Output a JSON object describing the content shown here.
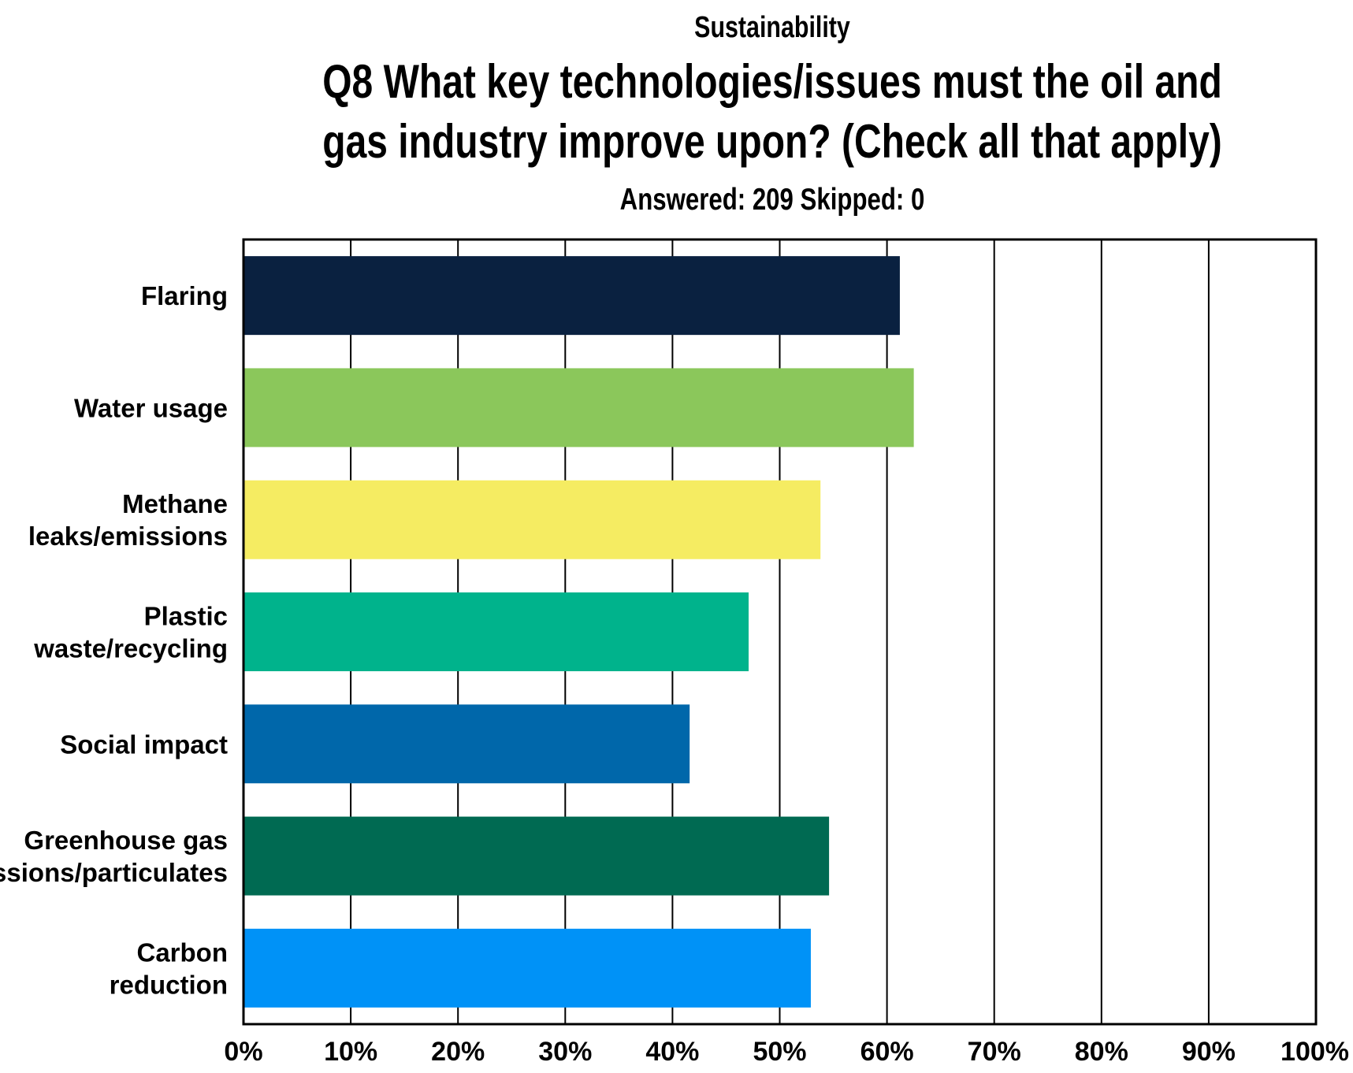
{
  "header": {
    "kicker": "Sustainability",
    "title": "Q8 What key technologies/issues must the oil and gas industry improve upon? (Check all that apply)",
    "subtitle": "Answered: 209 Skipped: 0"
  },
  "chart_data": {
    "type": "bar",
    "orientation": "horizontal",
    "categories": [
      [
        "Flaring"
      ],
      [
        "Water usage"
      ],
      [
        "Methane",
        "leaks/emissions"
      ],
      [
        "Plastic",
        "waste/recycling"
      ],
      [
        "Social impact"
      ],
      [
        "Greenhouse gas",
        "emissions/particulates"
      ],
      [
        "Carbon",
        "reduction"
      ]
    ],
    "values": [
      61.2,
      62.5,
      53.8,
      47.1,
      41.6,
      54.6,
      52.9
    ],
    "colors": [
      "#0a2140",
      "#8bc75b",
      "#f5ec62",
      "#00b38c",
      "#0067aa",
      "#006a52",
      "#0092f7"
    ],
    "xlim": [
      0,
      100
    ],
    "xticks": [
      "0%",
      "10%",
      "20%",
      "30%",
      "40%",
      "50%",
      "60%",
      "70%",
      "80%",
      "90%",
      "100%"
    ],
    "grid": true,
    "unit": "%"
  }
}
